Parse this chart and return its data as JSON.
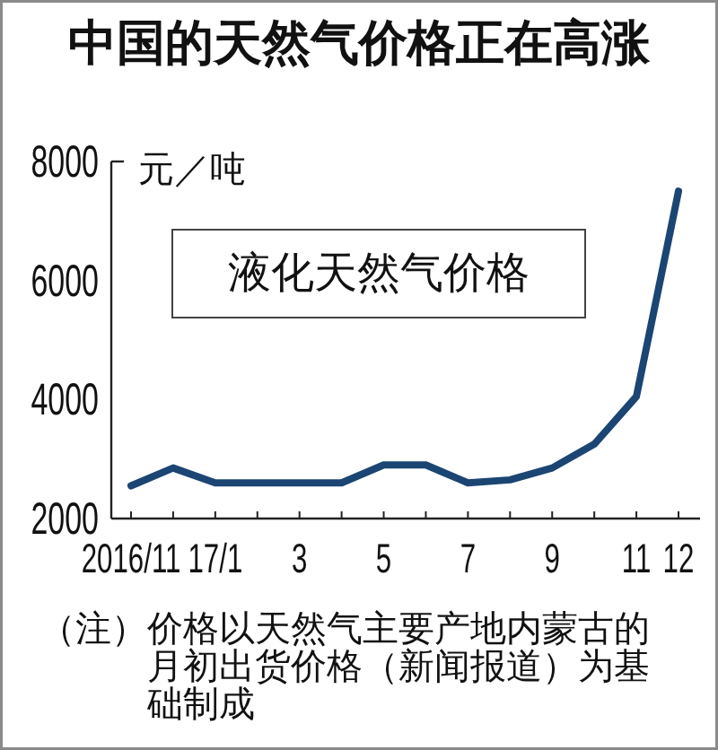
{
  "chart_data": {
    "type": "line",
    "title": "中国的天然气价格正在高涨",
    "ylabel": "元／吨",
    "categories": [
      "2016/11",
      null,
      "17/1",
      null,
      "3",
      null,
      "5",
      null,
      "7",
      null,
      "9",
      null,
      "11",
      "12"
    ],
    "values": [
      2550,
      2850,
      2600,
      2600,
      2600,
      2600,
      2900,
      2900,
      2600,
      2650,
      2850,
      3250,
      4050,
      7500
    ],
    "color": "#1b4572",
    "line_style": "solid",
    "ylim": [
      2000,
      8000
    ],
    "yticks": [
      2000,
      4000,
      6000,
      8000
    ],
    "annotations": [
      "液化天然气价格",
      "（注）价格以天然气主要产地内蒙古的月初出货价格（新闻报道）为基础制成"
    ]
  }
}
